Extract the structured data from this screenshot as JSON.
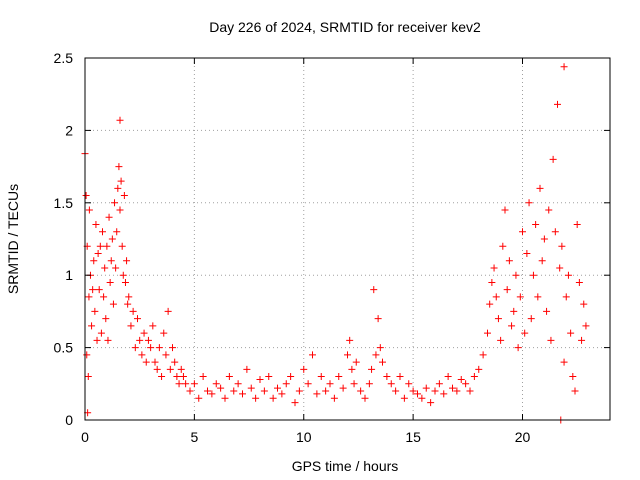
{
  "chart_data": {
    "type": "scatter",
    "title": "Day 226 of 2024, SRMTID for receiver kev2",
    "xlabel": "GPS time / hours",
    "ylabel": "SRMTID / TECUs",
    "xlim": [
      0,
      24
    ],
    "ylim": [
      0,
      2.5
    ],
    "x_ticks": [
      0,
      5,
      10,
      15,
      20
    ],
    "y_ticks": [
      0,
      0.5,
      1,
      1.5,
      2,
      2.5
    ],
    "x_tick_labels": [
      "0",
      "5",
      "10",
      "15",
      "20"
    ],
    "y_tick_labels": [
      "0",
      "0.5",
      "1",
      "1.5",
      "2",
      "2.5"
    ],
    "grid": true,
    "marker": "+",
    "color": "#ff0000",
    "series": [
      {
        "name": "SRMTID",
        "x": [
          0.0,
          0.05,
          0.08,
          0.1,
          0.12,
          0.15,
          0.18,
          0.2,
          0.25,
          0.3,
          0.35,
          0.4,
          0.45,
          0.5,
          0.55,
          0.6,
          0.65,
          0.7,
          0.75,
          0.8,
          0.85,
          0.9,
          0.95,
          1.0,
          1.05,
          1.1,
          1.15,
          1.2,
          1.25,
          1.3,
          1.35,
          1.4,
          1.45,
          1.5,
          1.55,
          1.6,
          1.65,
          1.7,
          1.75,
          1.8,
          1.85,
          1.9,
          1.95,
          2.0,
          2.1,
          2.2,
          2.3,
          2.4,
          2.5,
          2.6,
          2.7,
          2.8,
          2.9,
          3.0,
          3.1,
          3.2,
          3.3,
          3.4,
          3.5,
          3.6,
          3.7,
          3.8,
          3.9,
          4.0,
          4.1,
          4.2,
          4.3,
          4.4,
          4.5,
          4.6,
          4.8,
          5.0,
          5.2,
          5.4,
          5.6,
          5.8,
          6.0,
          6.2,
          6.4,
          6.6,
          6.8,
          7.0,
          7.2,
          7.4,
          7.6,
          7.8,
          8.0,
          8.2,
          8.4,
          8.6,
          8.8,
          9.0,
          9.2,
          9.4,
          9.6,
          9.8,
          10.0,
          10.2,
          10.4,
          10.6,
          10.8,
          11.0,
          11.2,
          11.4,
          11.6,
          11.8,
          12.0,
          12.1,
          12.2,
          12.3,
          12.4,
          12.6,
          12.8,
          13.0,
          13.1,
          13.2,
          13.3,
          13.4,
          13.5,
          13.6,
          13.8,
          14.0,
          14.2,
          14.4,
          14.6,
          14.8,
          15.0,
          15.2,
          15.4,
          15.6,
          15.8,
          16.0,
          16.2,
          16.4,
          16.6,
          16.8,
          17.0,
          17.2,
          17.4,
          17.6,
          17.8,
          18.0,
          18.2,
          18.4,
          18.5,
          18.6,
          18.7,
          18.8,
          18.9,
          19.0,
          19.1,
          19.2,
          19.3,
          19.4,
          19.5,
          19.6,
          19.7,
          19.8,
          19.9,
          20.0,
          20.1,
          20.2,
          20.3,
          20.4,
          20.5,
          20.6,
          20.7,
          20.8,
          20.9,
          21.0,
          21.1,
          21.2,
          21.3,
          21.4,
          21.5,
          21.6,
          21.7,
          21.8,
          21.9,
          22.0,
          22.1,
          22.2,
          22.3,
          22.4,
          22.5,
          22.6,
          22.7,
          22.8,
          22.9,
          1.6,
          21.9,
          21.75
        ],
        "y": [
          1.84,
          1.55,
          0.45,
          1.2,
          0.05,
          0.3,
          0.85,
          1.45,
          1.0,
          0.65,
          0.9,
          1.1,
          0.75,
          1.35,
          0.55,
          1.15,
          0.9,
          1.2,
          0.6,
          1.3,
          0.85,
          1.05,
          0.7,
          1.2,
          0.55,
          1.4,
          0.95,
          1.1,
          1.25,
          0.8,
          1.5,
          1.05,
          1.3,
          1.6,
          1.75,
          1.45,
          1.65,
          1.2,
          1.0,
          1.55,
          0.95,
          1.1,
          0.8,
          0.85,
          0.65,
          0.75,
          0.5,
          0.7,
          0.55,
          0.45,
          0.6,
          0.4,
          0.55,
          0.5,
          0.65,
          0.4,
          0.35,
          0.5,
          0.3,
          0.6,
          0.45,
          0.75,
          0.35,
          0.5,
          0.4,
          0.3,
          0.25,
          0.35,
          0.3,
          0.25,
          0.2,
          0.25,
          0.15,
          0.3,
          0.2,
          0.18,
          0.25,
          0.22,
          0.15,
          0.3,
          0.2,
          0.25,
          0.18,
          0.35,
          0.22,
          0.15,
          0.28,
          0.2,
          0.3,
          0.15,
          0.22,
          0.18,
          0.25,
          0.3,
          0.12,
          0.2,
          0.35,
          0.25,
          0.45,
          0.18,
          0.3,
          0.2,
          0.25,
          0.15,
          0.3,
          0.22,
          0.45,
          0.55,
          0.35,
          0.25,
          0.4,
          0.2,
          0.15,
          0.25,
          0.35,
          0.9,
          0.45,
          0.7,
          0.5,
          0.4,
          0.3,
          0.25,
          0.2,
          0.3,
          0.15,
          0.25,
          0.2,
          0.18,
          0.15,
          0.22,
          0.12,
          0.2,
          0.25,
          0.18,
          0.3,
          0.22,
          0.2,
          0.28,
          0.25,
          0.2,
          0.3,
          0.35,
          0.45,
          0.6,
          0.8,
          0.95,
          1.05,
          0.85,
          0.7,
          0.55,
          1.2,
          1.45,
          0.9,
          1.1,
          0.65,
          0.75,
          1.0,
          0.5,
          0.85,
          1.3,
          0.6,
          1.15,
          1.5,
          0.7,
          1.0,
          1.35,
          0.85,
          1.6,
          1.1,
          1.25,
          0.75,
          1.45,
          0.55,
          1.8,
          1.3,
          2.18,
          1.05,
          1.2,
          0.4,
          0.85,
          1.0,
          0.6,
          0.3,
          0.2,
          1.35,
          0.95,
          0.55,
          0.8,
          0.65,
          2.07,
          2.44,
          0.0
        ]
      }
    ]
  }
}
